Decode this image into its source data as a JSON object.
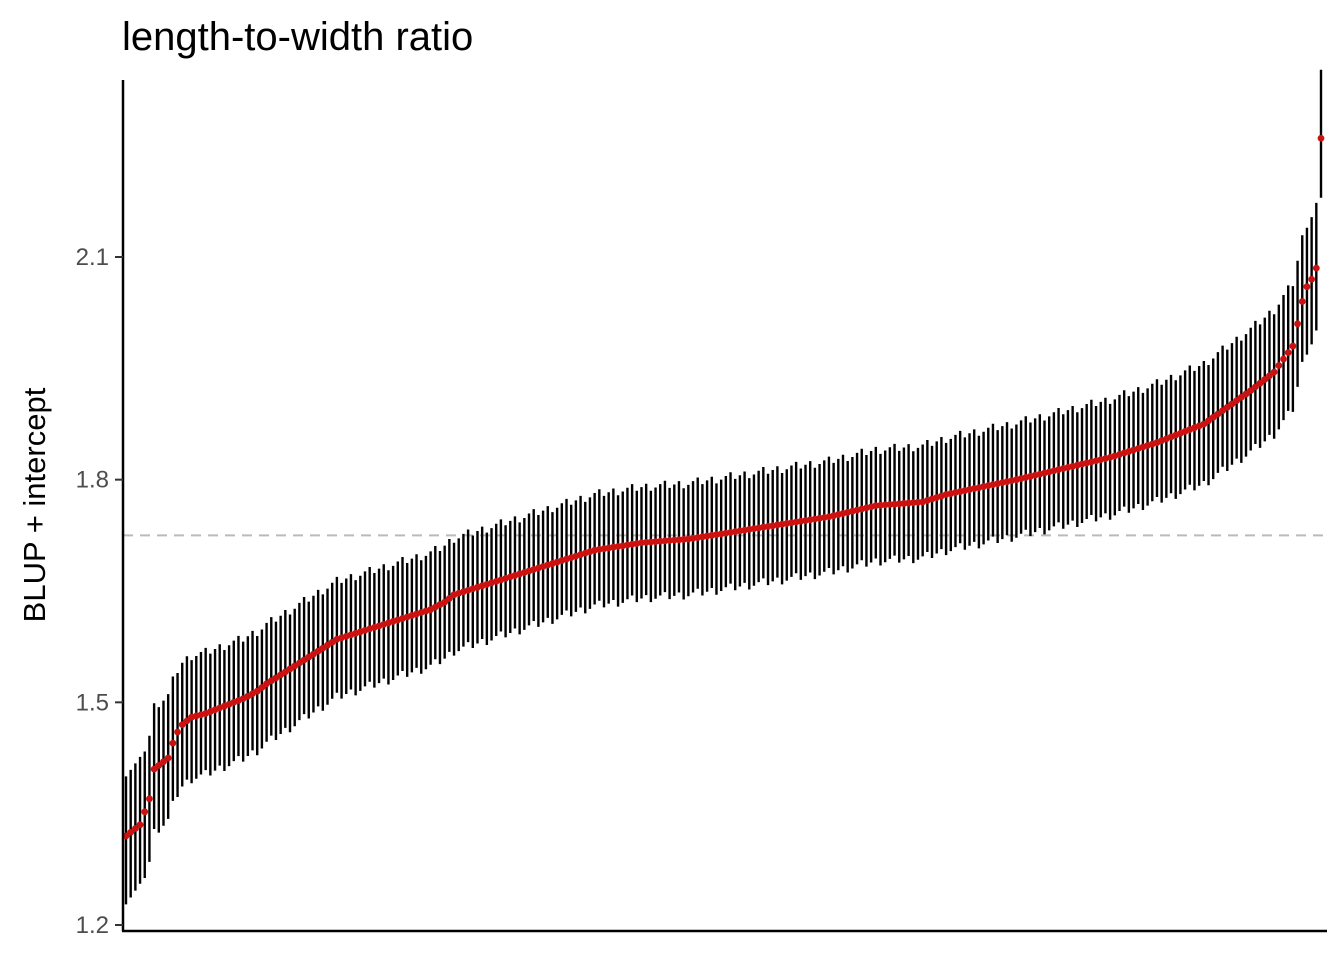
{
  "chart_data": {
    "type": "scatter",
    "title": "length-to-width ratio",
    "xlabel": "",
    "ylabel": "BLUP + intercept",
    "ylim": [
      1.185,
      2.28
    ],
    "yticks": [
      1.2,
      1.5,
      1.8,
      2.1
    ],
    "ytick_labels": [
      "1.2",
      "1.5",
      "1.8",
      "2.1"
    ],
    "reference_line": 1.725,
    "point_color": "#cc1111",
    "errorbar_color": "#000000",
    "reference_line_color": "#bbbbbb",
    "grid": false,
    "n_points": 256,
    "quantiles": [
      [
        0,
        1.32
      ],
      [
        3,
        1.335
      ],
      [
        5,
        1.37
      ],
      [
        6,
        1.41
      ],
      [
        7,
        1.415
      ],
      [
        9,
        1.425
      ],
      [
        10,
        1.445
      ],
      [
        11,
        1.46
      ],
      [
        12,
        1.47
      ],
      [
        14,
        1.48
      ],
      [
        17,
        1.485
      ],
      [
        19,
        1.49
      ],
      [
        25,
        1.505
      ],
      [
        28,
        1.515
      ],
      [
        30,
        1.525
      ],
      [
        35,
        1.545
      ],
      [
        40,
        1.565
      ],
      [
        45,
        1.585
      ],
      [
        50,
        1.595
      ],
      [
        55,
        1.605
      ],
      [
        60,
        1.615
      ],
      [
        65,
        1.625
      ],
      [
        68,
        1.635
      ],
      [
        70,
        1.645
      ],
      [
        75,
        1.655
      ],
      [
        80,
        1.665
      ],
      [
        90,
        1.685
      ],
      [
        100,
        1.705
      ],
      [
        110,
        1.715
      ],
      [
        120,
        1.72
      ],
      [
        130,
        1.73
      ],
      [
        140,
        1.74
      ],
      [
        150,
        1.75
      ],
      [
        160,
        1.765
      ],
      [
        170,
        1.77
      ],
      [
        175,
        1.78
      ],
      [
        190,
        1.8
      ],
      [
        200,
        1.815
      ],
      [
        210,
        1.83
      ],
      [
        220,
        1.85
      ],
      [
        230,
        1.875
      ],
      [
        240,
        1.92
      ],
      [
        245,
        1.945
      ],
      [
        249,
        1.98
      ],
      [
        251,
        2.04
      ],
      [
        252,
        2.06
      ],
      [
        253,
        2.07
      ],
      [
        254,
        2.085
      ],
      [
        255,
        2.26
      ]
    ],
    "ci_halfwidth": 0.075
  }
}
